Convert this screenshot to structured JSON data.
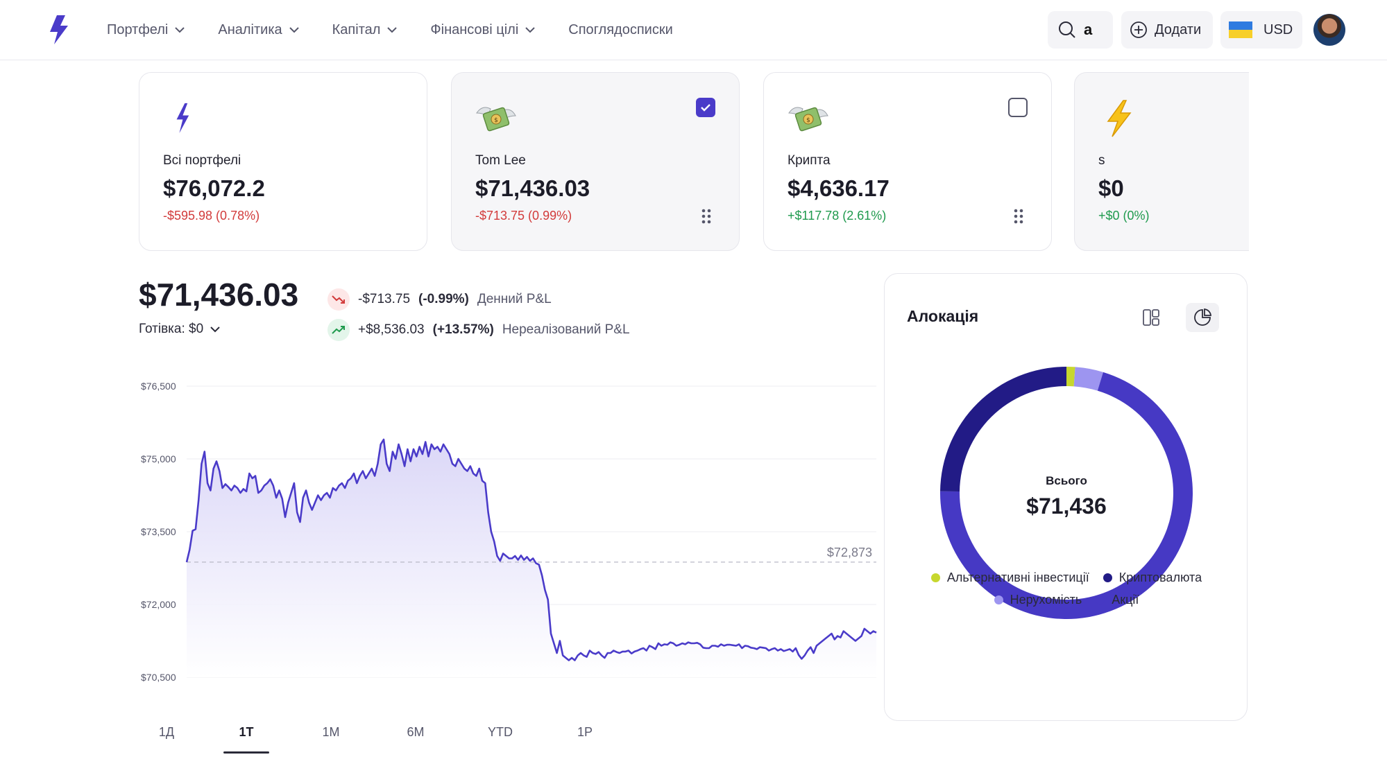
{
  "nav": {
    "items": [
      {
        "label": "Портфелі",
        "active": true,
        "dropdown": true
      },
      {
        "label": "Аналітика",
        "active": false,
        "dropdown": true
      },
      {
        "label": "Капітал",
        "active": false,
        "dropdown": true
      },
      {
        "label": "Фінансові цілі",
        "active": false,
        "dropdown": true
      },
      {
        "label": "Споглядосписки",
        "active": false,
        "dropdown": false
      }
    ],
    "search_badge": "a",
    "add_label": "Додати",
    "currency": "USD",
    "accent": "#4a3bc9"
  },
  "cards": [
    {
      "name": "Всі портфелі",
      "value": "$76,072.2",
      "change": "-$595.98 (0.78%)",
      "trend": "neg",
      "icon": "bolt-icon",
      "checkbox": "none",
      "selected": false
    },
    {
      "name": "Tom Lee",
      "value": "$71,436.03",
      "change": "-$713.75 (0.99%)",
      "trend": "neg",
      "icon": "money-wings-icon",
      "checkbox": "on",
      "selected": true
    },
    {
      "name": "Крипта",
      "value": "$4,636.17",
      "change": "+$117.78 (2.61%)",
      "trend": "pos",
      "icon": "money-wings-icon",
      "checkbox": "off",
      "selected": false
    },
    {
      "name": "s",
      "value": "$0",
      "change": "+$0 (0%)",
      "trend": "pos",
      "icon": "lightning-emoji-icon",
      "checkbox": "none",
      "selected": true
    }
  ],
  "summary": {
    "total": "$71,436.03",
    "cash": "Готівка: $0",
    "daily": {
      "amount": "-$713.75",
      "pct": "(-0.99%)",
      "label": "Денний P&L"
    },
    "unrealized": {
      "amount": "+$8,536.03",
      "pct": "(+13.57%)",
      "label": "Нереалізований P&L"
    }
  },
  "chart_data": {
    "type": "area",
    "title": "",
    "xlabel": "",
    "ylabel": "",
    "yticks": [
      "$76,500",
      "$75,000",
      "$73,500",
      "$72,000",
      "$70,500"
    ],
    "ytick_values": [
      76500,
      75000,
      73500,
      72000,
      70500
    ],
    "ylim": [
      70500,
      76500
    ],
    "reference_value": 72873,
    "reference_label": "$72,873",
    "grid": true,
    "series": [
      {
        "values": [
          72873,
          73130,
          73520,
          73550,
          74150,
          74900,
          75150,
          74500,
          74350,
          74800,
          74950,
          74750,
          74400,
          74480,
          74420,
          74350,
          74450,
          74400,
          74300,
          74380,
          74330,
          74700,
          74600,
          74650,
          74300,
          74350,
          74450,
          74500,
          74580,
          74450,
          74200,
          74350,
          74180,
          73800,
          74100,
          74300,
          74500,
          73900,
          73700,
          74200,
          74350,
          74100,
          73950,
          74100,
          74250,
          74150,
          74250,
          74300,
          74200,
          74400,
          74350,
          74450,
          74500,
          74400,
          74550,
          74600,
          74700,
          74500,
          74650,
          74750,
          74600,
          74700,
          74800,
          74650,
          74900,
          75300,
          75400,
          74900,
          74750,
          75150,
          75000,
          75300,
          75100,
          74850,
          75200,
          74950,
          75200,
          75050,
          75250,
          75100,
          75350,
          75050,
          75300,
          75200,
          75250,
          75150,
          75300,
          75200,
          75100,
          74900,
          74850,
          75000,
          74900,
          74800,
          74750,
          74850,
          74700,
          74650,
          74800,
          74550,
          74500,
          73900,
          73500,
          73300,
          73000,
          72900,
          73050,
          73000,
          72950,
          72950,
          73000,
          72920,
          73010,
          72920,
          72980,
          72900,
          72950,
          72850,
          72820,
          72600,
          72300,
          72100,
          71400,
          71200,
          71000,
          71250,
          70950,
          70900,
          70850,
          70900,
          70850,
          70950,
          71000,
          70950,
          70920,
          71050,
          71000,
          70980,
          71020,
          70950,
          70900,
          71000,
          71000,
          71050,
          71020,
          71000,
          71030,
          71030,
          71050,
          70990,
          71030,
          71050,
          71080,
          71100,
          71050,
          71150,
          71120,
          71080,
          71200,
          71150,
          71180,
          71170,
          71220,
          71200,
          71150,
          71170,
          71200,
          71180,
          71220,
          71200,
          71200,
          71210,
          71180,
          71110,
          71100,
          71100,
          71150,
          71150,
          71130,
          71180,
          71150,
          71170,
          71170,
          71160,
          71150,
          71180,
          71100,
          71150,
          71140,
          71110,
          71100,
          71080,
          71120,
          71110,
          71100,
          71050,
          71080,
          71100,
          71050,
          71080,
          71040,
          71060,
          71080,
          71030,
          71100,
          70960,
          70880,
          70950,
          71050,
          71120,
          71000,
          71150,
          71200,
          71250,
          71300,
          71350,
          71400,
          71280,
          71350,
          71320,
          71450,
          71400,
          71350,
          71300,
          71250,
          71300,
          71350,
          71500,
          71450,
          71400,
          71450,
          71420
        ]
      }
    ],
    "colors": {
      "line": "#4a3bc9",
      "fill_top": "#d9d5f7",
      "fill_bottom": "#ffffff"
    }
  },
  "periods": {
    "items": [
      "1Д",
      "1Т",
      "1М",
      "6М",
      "YTD",
      "1Р"
    ],
    "active": "1Т"
  },
  "allocation": {
    "title": "Алокація",
    "center_label": "Всього",
    "center_value": "$71,436",
    "chart_data": {
      "type": "pie",
      "slices": [
        {
          "name": "Альтернативні інвестиції",
          "value": 1.1,
          "color": "#c7d72e"
        },
        {
          "name": "Нерухомість",
          "value": 3.6,
          "color": "#9d95f0"
        },
        {
          "name": "Акції",
          "value": 70.5,
          "color": "#4639c4"
        },
        {
          "name": "Криптовалюта",
          "value": 24.8,
          "color": "#221b86"
        }
      ]
    },
    "legend_rows": [
      [
        {
          "name": "Альтернативні інвестиції",
          "color": "#c7d72e"
        },
        {
          "name": "Криптовалюта",
          "color": "#221b86"
        }
      ],
      [
        {
          "name": "Нерухомість",
          "color": "#9d95f0"
        },
        {
          "name": "Акції",
          "color": "#4639c4"
        }
      ]
    ]
  }
}
